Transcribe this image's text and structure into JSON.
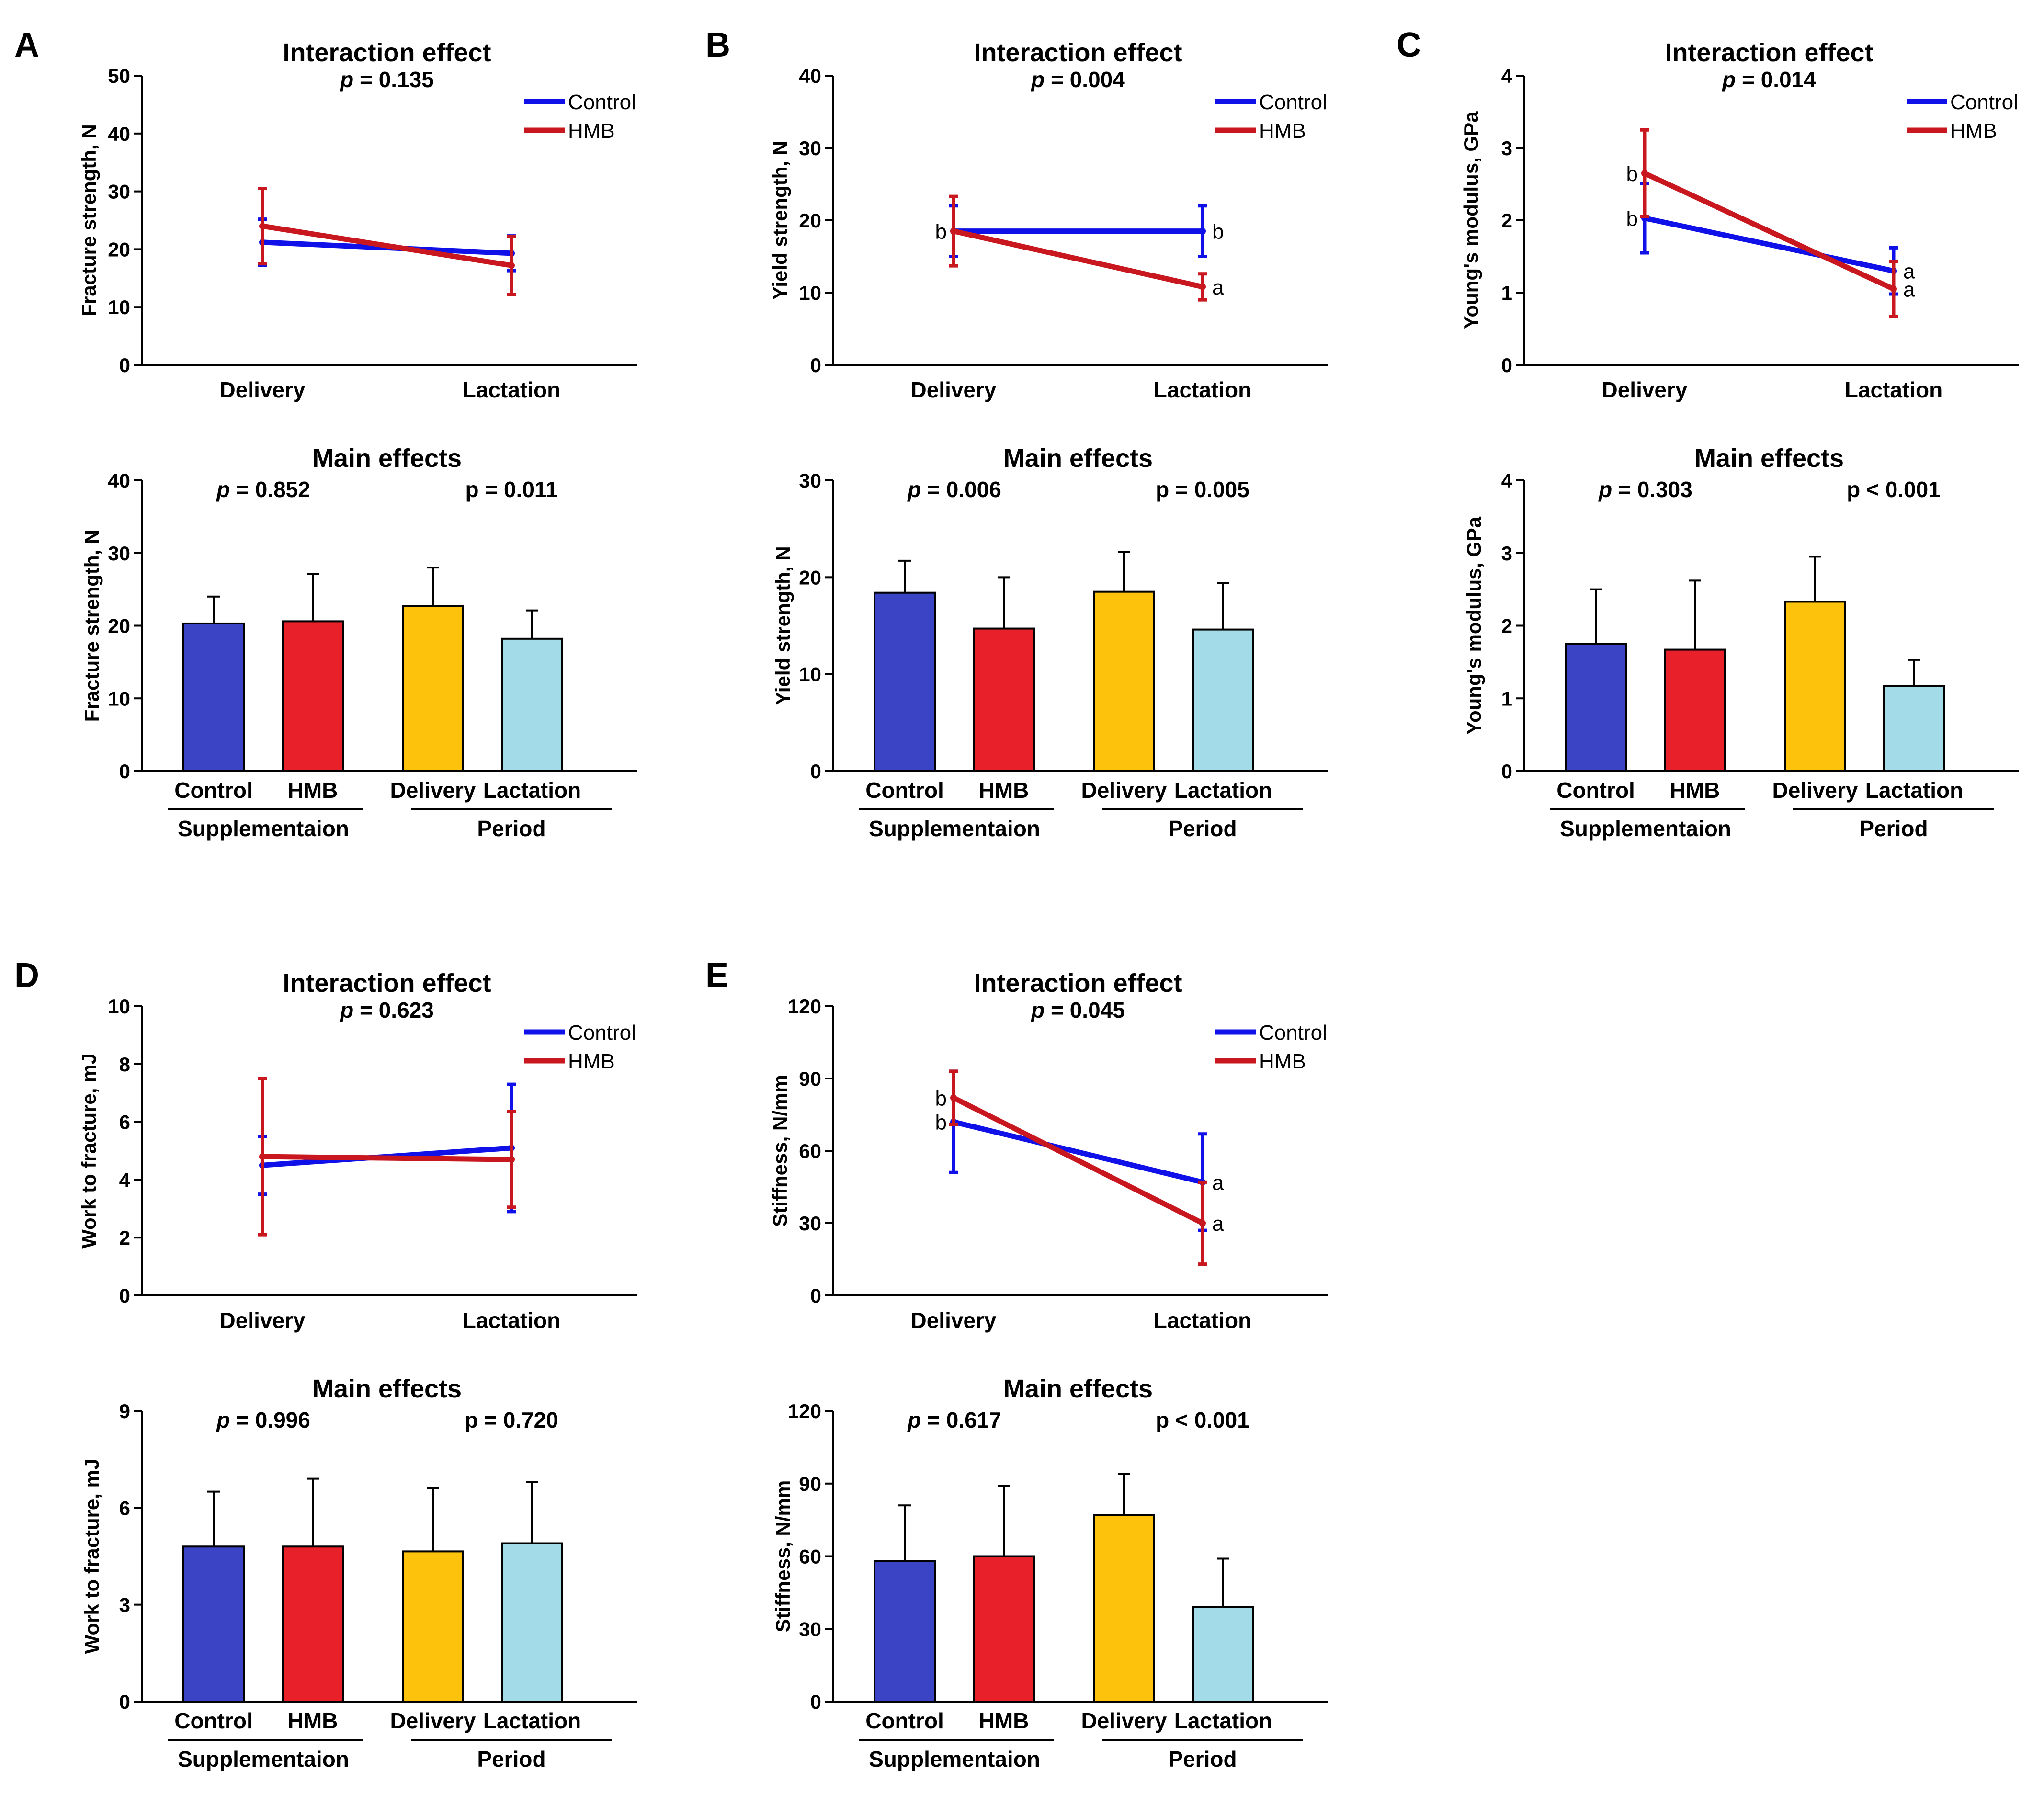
{
  "colors": {
    "control_line": "#1010e8",
    "hmb_line": "#c8171e",
    "bar_control": "#3b44c4",
    "bar_hmb": "#e8202a",
    "bar_delivery": "#fdc30c",
    "bar_lactation": "#a3dbe8"
  },
  "chart_data": [
    {
      "panel": "A",
      "interaction": {
        "type": "line",
        "title": "Interaction effect",
        "p_label": "p",
        "p_text": " = 0.135",
        "ylabel": "Fracture strength, N",
        "ylim": [
          0,
          50
        ],
        "yticks": [
          0,
          10,
          20,
          30,
          40,
          50
        ],
        "categories": [
          "Delivery",
          "Lactation"
        ],
        "legend": [
          "Control",
          "HMB"
        ],
        "series": [
          {
            "name": "Control",
            "values": [
              21.2,
              19.3
            ],
            "err": [
              4.0,
              3.0
            ],
            "sig": [
              "",
              ""
            ]
          },
          {
            "name": "HMB",
            "values": [
              24.0,
              17.2
            ],
            "err": [
              6.5,
              5.0
            ],
            "sig": [
              "",
              ""
            ]
          }
        ]
      },
      "main": {
        "type": "bar",
        "title": "Main effects",
        "p_left_label": "p",
        "p_left_text": " = 0.852",
        "p_right_text": "p = 0.011",
        "ylabel": "Fracture strength, N",
        "ylim": [
          0,
          40
        ],
        "yticks": [
          0,
          10,
          20,
          30,
          40
        ],
        "categories": [
          "Control",
          "HMB",
          "Delivery",
          "Lactation"
        ],
        "values": [
          20.3,
          20.6,
          22.7,
          18.2
        ],
        "err": [
          3.7,
          6.5,
          5.3,
          3.9
        ],
        "groups": [
          "Supplementaion",
          "Period"
        ]
      }
    },
    {
      "panel": "B",
      "interaction": {
        "type": "line",
        "title": "Interaction effect",
        "p_label": "p",
        "p_text": " = 0.004",
        "ylabel": "Yield strength, N",
        "ylim": [
          0,
          40
        ],
        "yticks": [
          0,
          10,
          20,
          30,
          40
        ],
        "categories": [
          "Delivery",
          "Lactation"
        ],
        "legend": [
          "Control",
          "HMB"
        ],
        "series": [
          {
            "name": "Control",
            "values": [
              18.5,
              18.5
            ],
            "err": [
              3.5,
              3.5
            ],
            "sig": [
              "b",
              "b"
            ]
          },
          {
            "name": "HMB",
            "values": [
              18.5,
              10.8
            ],
            "err": [
              4.8,
              1.8
            ],
            "sig": [
              "b",
              "a"
            ]
          }
        ]
      },
      "main": {
        "type": "bar",
        "title": "Main effects",
        "p_left_label": "p",
        "p_left_text": " = 0.006",
        "p_right_text": "p = 0.005",
        "ylabel": "Yield strength, N",
        "ylim": [
          0,
          30
        ],
        "yticks": [
          0,
          10,
          20,
          30
        ],
        "categories": [
          "Control",
          "HMB",
          "Delivery",
          "Lactation"
        ],
        "values": [
          18.4,
          14.7,
          18.5,
          14.6
        ],
        "err": [
          3.3,
          5.3,
          4.1,
          4.8
        ],
        "groups": [
          "Supplementaion",
          "Period"
        ]
      }
    },
    {
      "panel": "C",
      "interaction": {
        "type": "line",
        "title": "Interaction effect",
        "p_label": "p",
        "p_text": " = 0.014",
        "ylabel": "Young's modulus, GPa",
        "ylim": [
          0,
          4
        ],
        "yticks": [
          0,
          1,
          2,
          3,
          4
        ],
        "categories": [
          "Delivery",
          "Lactation"
        ],
        "legend": [
          "Control",
          "HMB"
        ],
        "series": [
          {
            "name": "Control",
            "values": [
              2.03,
              1.3
            ],
            "err": [
              0.48,
              0.32
            ],
            "sig": [
              "b",
              "a"
            ]
          },
          {
            "name": "HMB",
            "values": [
              2.65,
              1.05
            ],
            "err": [
              0.6,
              0.38
            ],
            "sig": [
              "b",
              "a"
            ]
          }
        ]
      },
      "main": {
        "type": "bar",
        "title": "Main effects",
        "p_left_label": "p",
        "p_left_text": " = 0.303",
        "p_right_text": "p < 0.001",
        "ylabel": "Young's modulus, GPa",
        "ylim": [
          0,
          4
        ],
        "yticks": [
          0,
          1,
          2,
          3,
          4
        ],
        "categories": [
          "Control",
          "HMB",
          "Delivery",
          "Lactation"
        ],
        "values": [
          1.75,
          1.67,
          2.33,
          1.17
        ],
        "err": [
          0.75,
          0.95,
          0.62,
          0.36
        ],
        "groups": [
          "Supplementaion",
          "Period"
        ]
      }
    },
    {
      "panel": "D",
      "interaction": {
        "type": "line",
        "title": "Interaction effect",
        "p_label": "p",
        "p_text": " = 0.623",
        "ylabel": "Work to fracture, mJ",
        "ylim": [
          0,
          10
        ],
        "yticks": [
          0,
          2,
          4,
          6,
          8,
          10
        ],
        "categories": [
          "Delivery",
          "Lactation"
        ],
        "legend": [
          "Control",
          "HMB"
        ],
        "series": [
          {
            "name": "Control",
            "values": [
              4.5,
              5.1
            ],
            "err": [
              1.0,
              2.2
            ],
            "sig": [
              "",
              ""
            ]
          },
          {
            "name": "HMB",
            "values": [
              4.8,
              4.7
            ],
            "err": [
              2.7,
              1.65
            ],
            "sig": [
              "",
              ""
            ]
          }
        ]
      },
      "main": {
        "type": "bar",
        "title": "Main effects",
        "p_left_label": "p",
        "p_left_text": " = 0.996",
        "p_right_text": "p = 0.720",
        "ylabel": "Work to fracture, mJ",
        "ylim": [
          0,
          9
        ],
        "yticks": [
          0,
          3,
          6,
          9
        ],
        "categories": [
          "Control",
          "HMB",
          "Delivery",
          "Lactation"
        ],
        "values": [
          4.8,
          4.8,
          4.65,
          4.9
        ],
        "err": [
          1.7,
          2.1,
          1.95,
          1.9
        ],
        "groups": [
          "Supplementaion",
          "Period"
        ]
      }
    },
    {
      "panel": "E",
      "interaction": {
        "type": "line",
        "title": "Interaction effect",
        "p_label": "p",
        "p_text": " = 0.045",
        "ylabel": "Stiffness, N/mm",
        "ylim": [
          0,
          120
        ],
        "yticks": [
          0,
          30,
          60,
          90,
          120
        ],
        "categories": [
          "Delivery",
          "Lactation"
        ],
        "legend": [
          "Control",
          "HMB"
        ],
        "series": [
          {
            "name": "Control",
            "values": [
              72,
              47
            ],
            "err": [
              21,
              20
            ],
            "sig": [
              "b",
              "a"
            ]
          },
          {
            "name": "HMB",
            "values": [
              82,
              30
            ],
            "err": [
              11,
              17
            ],
            "sig": [
              "b",
              "a"
            ]
          }
        ]
      },
      "main": {
        "type": "bar",
        "title": "Main effects",
        "p_left_label": "p",
        "p_left_text": " = 0.617",
        "p_right_text": "p < 0.001",
        "ylabel": "Stiffness, N/mm",
        "ylim": [
          0,
          120
        ],
        "yticks": [
          0,
          30,
          60,
          90,
          120
        ],
        "categories": [
          "Control",
          "HMB",
          "Delivery",
          "Lactation"
        ],
        "values": [
          58,
          60,
          77,
          39
        ],
        "err": [
          23,
          29,
          17,
          20
        ],
        "groups": [
          "Supplementaion",
          "Period"
        ]
      }
    }
  ]
}
